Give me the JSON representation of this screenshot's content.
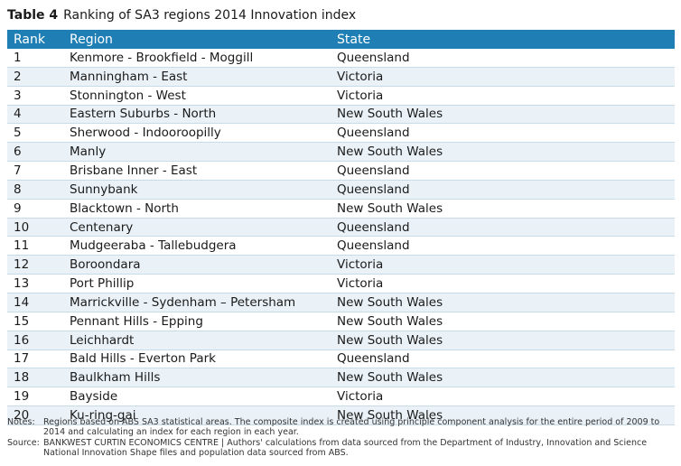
{
  "title": {
    "number": "Table 4",
    "text": "Ranking of SA3 regions 2014 Innovation index"
  },
  "table": {
    "headers": [
      "Rank",
      "Region",
      "State"
    ],
    "rows": [
      {
        "rank": "1",
        "region": "Kenmore - Brookfield - Moggill",
        "state": "Queensland"
      },
      {
        "rank": "2",
        "region": "Manningham - East",
        "state": "Victoria"
      },
      {
        "rank": "3",
        "region": "Stonnington - West",
        "state": "Victoria"
      },
      {
        "rank": "4",
        "region": "Eastern Suburbs - North",
        "state": "New South Wales"
      },
      {
        "rank": "5",
        "region": "Sherwood - Indooroopilly",
        "state": "Queensland"
      },
      {
        "rank": "6",
        "region": "Manly",
        "state": "New South Wales"
      },
      {
        "rank": "7",
        "region": "Brisbane Inner - East",
        "state": "Queensland"
      },
      {
        "rank": "8",
        "region": "Sunnybank",
        "state": "Queensland"
      },
      {
        "rank": "9",
        "region": "Blacktown - North",
        "state": "New South Wales"
      },
      {
        "rank": "10",
        "region": "Centenary",
        "state": "Queensland"
      },
      {
        "rank": "11",
        "region": "Mudgeeraba - Tallebudgera",
        "state": "Queensland"
      },
      {
        "rank": "12",
        "region": "Boroondara",
        "state": "Victoria"
      },
      {
        "rank": "13",
        "region": "Port Phillip",
        "state": "Victoria"
      },
      {
        "rank": "14",
        "region": "Marrickville - Sydenham – Petersham",
        "state": "New South Wales"
      },
      {
        "rank": "15",
        "region": "Pennant Hills - Epping",
        "state": "New South Wales"
      },
      {
        "rank": "16",
        "region": "Leichhardt",
        "state": "New South Wales"
      },
      {
        "rank": "17",
        "region": "Bald Hills - Everton Park",
        "state": "Queensland"
      },
      {
        "rank": "18",
        "region": "Baulkham Hills",
        "state": "New South Wales"
      },
      {
        "rank": "19",
        "region": "Bayside",
        "state": "Victoria"
      },
      {
        "rank": "20",
        "region": "Ku-ring-gai",
        "state": "New South Wales"
      }
    ]
  },
  "notes": {
    "notes_label": "Notes:",
    "notes_text": "Regions based on ABS SA3 statistical areas. The composite index is created using principle component analysis for the entire period of 2009 to 2014 and calculating an index for each region in each year.",
    "source_label": "Source:",
    "source_text": "BANKWEST CURTIN ECONOMICS CENTRE | Authors' calculations from data sourced from the Department of Industry, Innovation and Science National Innovation Shape files and population data sourced from ABS."
  }
}
